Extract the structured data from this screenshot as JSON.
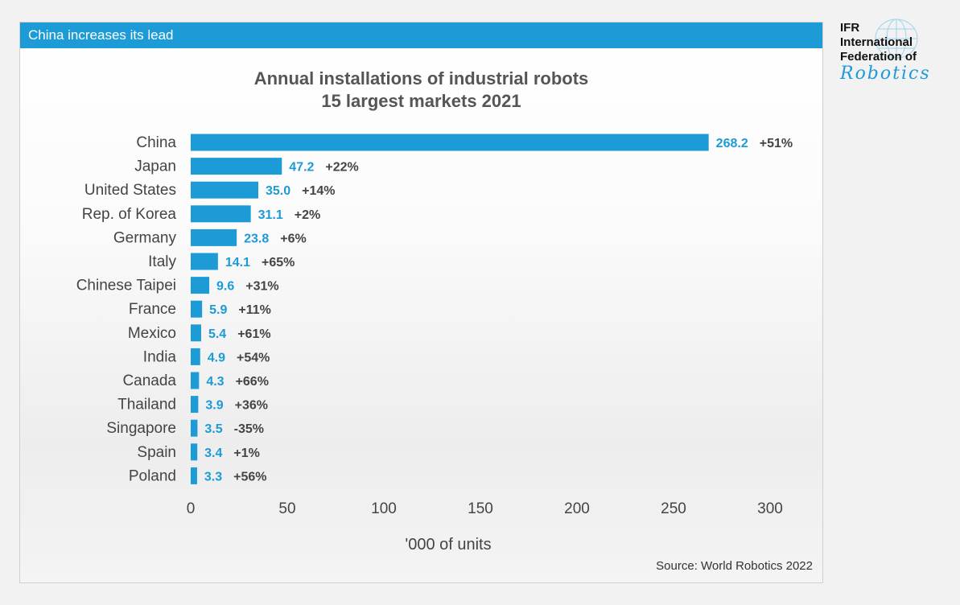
{
  "banner": {
    "text": "China increases its lead"
  },
  "logo": {
    "line1": "IFR",
    "line2": "International",
    "line3": "Federation of",
    "script": "Robotics",
    "icon": "globe-icon"
  },
  "source": "Source: World Robotics 2022",
  "colors": {
    "bar": "#1c9bd7",
    "banner": "#1c9bd7",
    "value_label": "#1c9bd7",
    "text": "#444444"
  },
  "chart_data": {
    "type": "bar",
    "orientation": "horizontal",
    "title": "Annual installations of industrial robots",
    "subtitle": "15 largest markets 2021",
    "xlabel": "'000 of units",
    "ylabel": "",
    "xlim": [
      0,
      300
    ],
    "xticks": [
      "0",
      "50",
      "100",
      "150",
      "200",
      "250",
      "300"
    ],
    "grid": false,
    "categories": [
      "China",
      "Japan",
      "United States",
      "Rep. of Korea",
      "Germany",
      "Italy",
      "Chinese Taipei",
      "France",
      "Mexico",
      "India",
      "Canada",
      "Thailand",
      "Singapore",
      "Spain",
      "Poland"
    ],
    "values": [
      268.2,
      47.2,
      35.0,
      31.1,
      23.8,
      14.1,
      9.6,
      5.9,
      5.4,
      4.9,
      4.3,
      3.9,
      3.5,
      3.4,
      3.3
    ],
    "value_labels": [
      "268.2",
      "47.2",
      "35.0",
      "31.1",
      "23.8",
      "14.1",
      "9.6",
      "5.9",
      "5.4",
      "4.9",
      "4.3",
      "3.9",
      "3.5",
      "3.4",
      "3.3"
    ],
    "changes": [
      "+51%",
      "+22%",
      "+14%",
      "+2%",
      "+6%",
      "+65%",
      "+31%",
      "+11%",
      "+61%",
      "+54%",
      "+66%",
      "+36%",
      "-35%",
      "+1%",
      "+56%"
    ]
  }
}
